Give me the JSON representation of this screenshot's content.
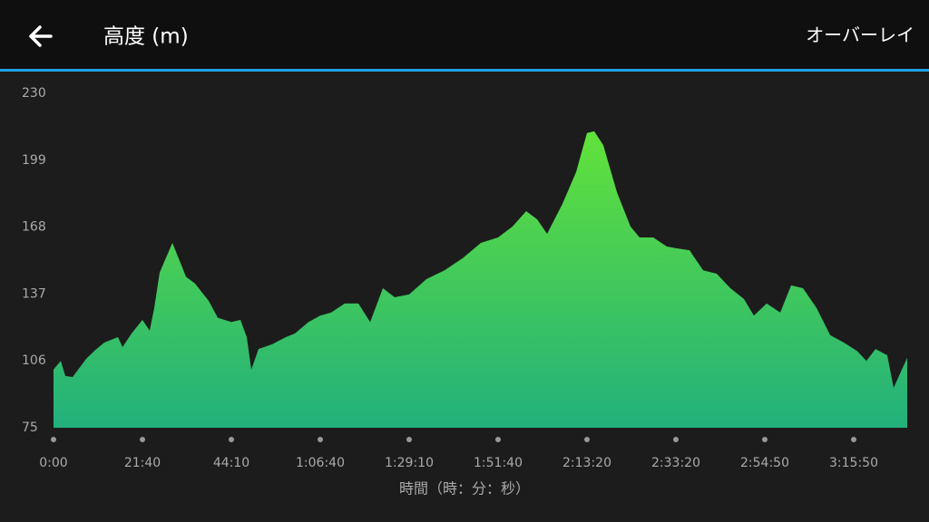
{
  "header": {
    "title": "高度 (m)",
    "action": "オーバーレイ"
  },
  "chart_data": {
    "type": "area",
    "x_label": "時間（時：分：秒）",
    "x": [
      0,
      106,
      173,
      279,
      478,
      610,
      743,
      942,
      1009,
      1141,
      1300,
      1410,
      1479,
      1562,
      1755,
      1962,
      2100,
      2306,
      2444,
      2650,
      2788,
      2884,
      2953,
      3063,
      3270,
      3477,
      3615,
      3821,
      4000,
      4165,
      4372,
      4579,
      4758,
      4951,
      5130,
      5350,
      5612,
      5888,
      6163,
      6439,
      6700,
      6912,
      7111,
      7271,
      7417,
      7642,
      7841,
      8000,
      8098,
      8220,
      8404,
      8587,
      8710,
      8894,
      9077,
      9200,
      9397,
      9595,
      9792,
      9990,
      10187,
      10332,
      10516,
      10709,
      10863,
      11031,
      11224,
      11417,
      11610,
      11801,
      11930,
      12059,
      12226,
      12316,
      12419,
      12509
    ],
    "values": [
      102,
      106,
      99,
      98.5,
      107,
      111,
      114.5,
      117,
      112.4,
      118.7,
      125,
      120,
      130.5,
      147,
      160.7,
      145,
      141.8,
      133.8,
      126,
      124,
      125,
      117,
      102,
      111.5,
      113.7,
      117,
      118.7,
      124,
      127,
      128.4,
      132.6,
      132.6,
      124,
      139.7,
      135.5,
      136.8,
      143.9,
      148,
      153.6,
      160.7,
      163.2,
      168.3,
      175.4,
      171.6,
      164.9,
      178.8,
      193.5,
      211.6,
      212.4,
      206,
      184.2,
      168.3,
      163.2,
      163.2,
      159,
      158.2,
      157.3,
      148,
      146.4,
      139.7,
      134.7,
      127,
      132.6,
      128.4,
      141,
      139.7,
      130.5,
      117.9,
      114.5,
      110.5,
      106,
      111.5,
      108.6,
      93.5,
      101,
      107.4
    ],
    "xlim": [
      0,
      12509
    ],
    "xticks": [
      {
        "value": 0,
        "label": "0:00"
      },
      {
        "value": 1300,
        "label": "21:40"
      },
      {
        "value": 2650,
        "label": "44:10"
      },
      {
        "value": 4000,
        "label": "1:06:40"
      },
      {
        "value": 5350,
        "label": "1:29:10"
      },
      {
        "value": 6700,
        "label": "1:51:40"
      },
      {
        "value": 8000,
        "label": "2:13:20"
      },
      {
        "value": 9200,
        "label": "2:33:20"
      },
      {
        "value": 10490,
        "label": "2:54:50"
      },
      {
        "value": 11750,
        "label": "3:15:50"
      }
    ],
    "ylim": [
      75,
      230
    ],
    "yticks": [
      75,
      106,
      137,
      168,
      199,
      230
    ],
    "color_top": "#62e23a",
    "color_bottom": "#22b07c"
  }
}
